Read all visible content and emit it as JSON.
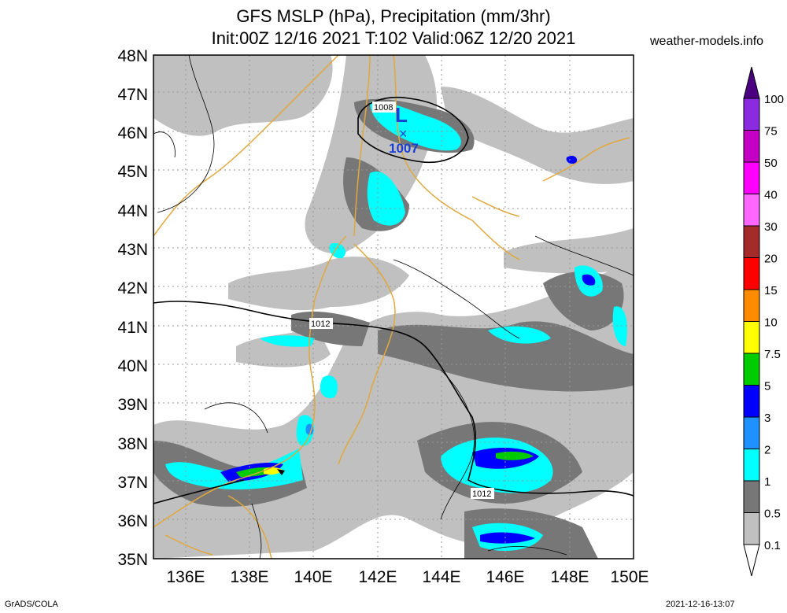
{
  "title_line1": "GFS MSLP (hPa), Precipitation (mm/3hr)",
  "title_line2": "Init:00Z 12/16 2021 T:102 Valid:06Z 12/20 2021",
  "site": "weather-models.info",
  "footer_left": "GrADS/COLA",
  "footer_right": "2021-12-16-13:07",
  "lat_labels": [
    "48N",
    "47N",
    "46N",
    "45N",
    "44N",
    "43N",
    "42N",
    "41N",
    "40N",
    "39N",
    "38N",
    "37N",
    "36N",
    "35N"
  ],
  "lon_labels": [
    "136E",
    "138E",
    "140E",
    "142E",
    "144E",
    "146E",
    "148E",
    "150E"
  ],
  "low_center": {
    "symbol": "L",
    "pressure": "1007"
  },
  "isobar_labels": [
    "1008",
    "1012",
    "1012"
  ],
  "legend": {
    "labels": [
      "100",
      "75",
      "50",
      "40",
      "30",
      "20",
      "15",
      "10",
      "7.5",
      "5",
      "3",
      "2",
      "1",
      "0.5",
      "0.1"
    ],
    "colors": [
      "#4b0082",
      "#8a2be2",
      "#c400c4",
      "#ff00ff",
      "#ff66ff",
      "#a52a2a",
      "#ff0000",
      "#ff8c00",
      "#ffff00",
      "#00cc00",
      "#0000ff",
      "#1e90ff",
      "#00ffff",
      "#777777",
      "#c0c0c0"
    ]
  }
}
